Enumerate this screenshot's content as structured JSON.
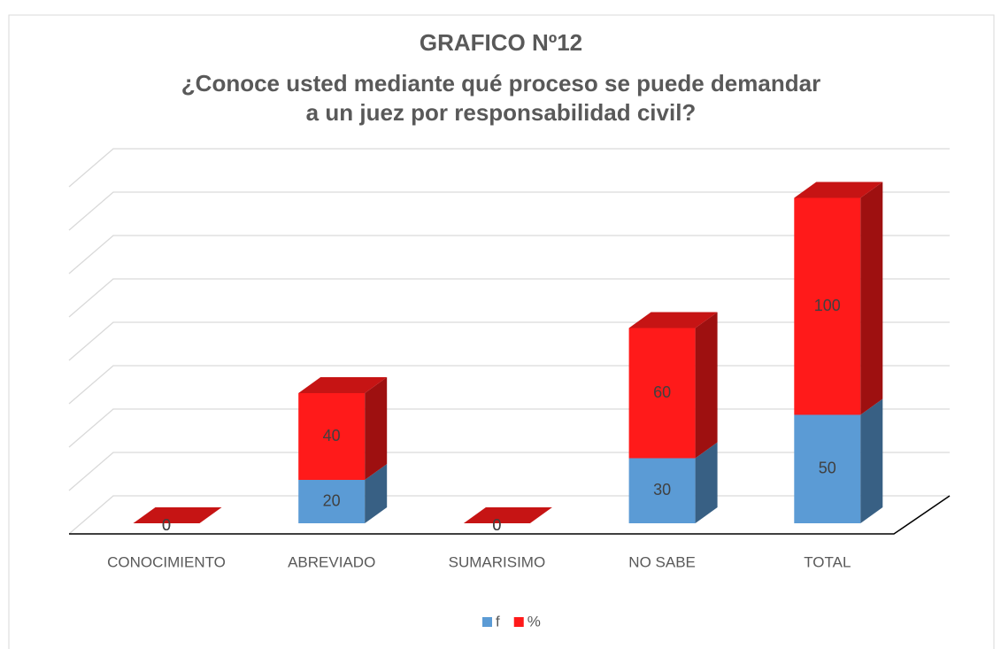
{
  "chart_data": {
    "type": "bar3d_stacked",
    "title": "GRAFICO Nº12",
    "subtitle": [
      "¿Conoce usted mediante qué proceso se puede demandar",
      "a un juez por responsabilidad civil?"
    ],
    "categories": [
      "CONOCIMIENTO",
      "ABREVIADO",
      "SUMARISIMO",
      "NO SABE",
      "TOTAL"
    ],
    "series": [
      {
        "name": "f",
        "color": "#5b9bd5",
        "values": [
          0,
          20,
          0,
          30,
          50
        ]
      },
      {
        "name": "%",
        "color": "#ff1a1a",
        "values": [
          0,
          40,
          0,
          60,
          100
        ]
      }
    ],
    "ylim": [
      0,
      160
    ],
    "yticks": [
      0,
      20,
      40,
      60,
      80,
      100,
      120,
      140,
      160
    ],
    "grid": true,
    "legend": "bottom"
  }
}
